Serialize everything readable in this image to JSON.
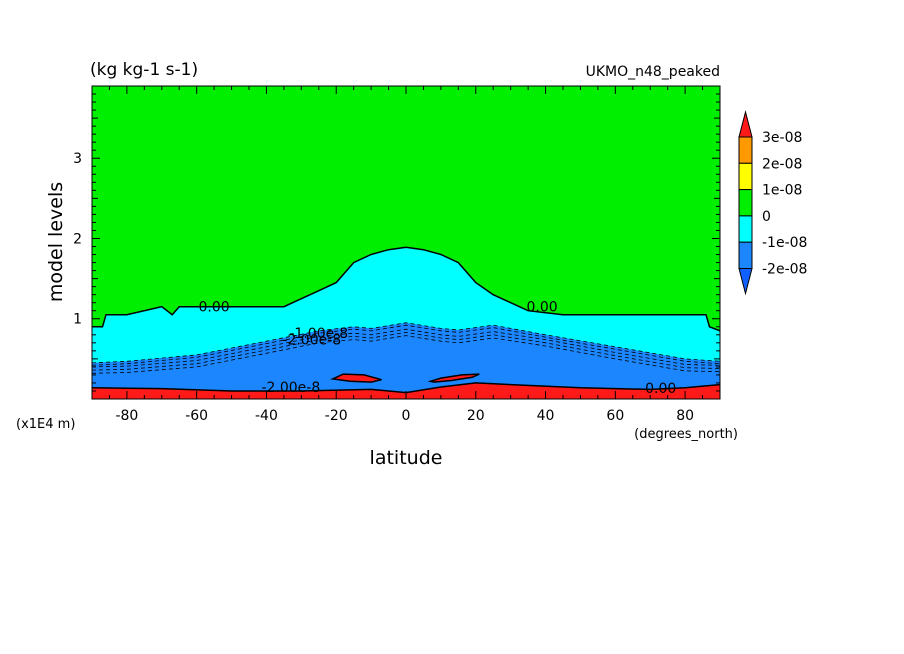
{
  "chart_data": {
    "type": "heatmap",
    "title": "(kg kg-1 s-1)",
    "subtitle": "UKMO_n48_peaked",
    "xlabel": "latitude",
    "xunit": "(degrees_north)",
    "ylabel": "model levels",
    "yunit": "(x1E4 m)",
    "xlim": [
      -90,
      90
    ],
    "ylim": [
      0,
      3.9
    ],
    "xticks": [
      -80,
      -60,
      -40,
      -20,
      0,
      20,
      40,
      60,
      80
    ],
    "yticks": [
      1,
      2,
      3
    ],
    "colorbar": {
      "levels": [
        "3e-08",
        "2e-08",
        "1e-08",
        "0",
        "-1e-08",
        "-2e-08"
      ],
      "colors": [
        "#ff1a1a",
        "#ff9900",
        "#ffff00",
        "#00ee00",
        "#00ffff",
        "#1c86ff",
        "#1060ff"
      ]
    },
    "contour_labels": [
      {
        "text": "0.00",
        "x": -55,
        "y": 1.15
      },
      {
        "text": "0.00",
        "x": 39,
        "y": 1.15
      },
      {
        "text": "-2.00e-8",
        "x": -27,
        "y": 0.74
      },
      {
        "text": "-1.00e-8",
        "x": -25,
        "y": 0.82
      },
      {
        "text": "0.00",
        "x": 73,
        "y": 0.14
      },
      {
        "text": "-2.00e-8",
        "x": -33,
        "y": 0.15
      }
    ],
    "zero_contour_top": {
      "lat": [
        -90,
        -87,
        -86,
        -80,
        -70,
        -67,
        -65,
        -55,
        -35,
        -30,
        -25,
        -20,
        -15,
        -10,
        -5,
        0,
        5,
        10,
        15,
        20,
        25,
        30,
        35,
        45,
        55,
        65,
        75,
        86,
        87,
        90
      ],
      "z": [
        0.9,
        0.9,
        1.05,
        1.05,
        1.15,
        1.05,
        1.15,
        1.15,
        1.15,
        1.25,
        1.35,
        1.45,
        1.7,
        1.8,
        1.86,
        1.89,
        1.86,
        1.8,
        1.7,
        1.45,
        1.3,
        1.2,
        1.1,
        1.05,
        1.05,
        1.05,
        1.05,
        1.05,
        0.9,
        0.85
      ]
    },
    "minus1_contour": {
      "lat": [
        -90,
        -80,
        -60,
        -40,
        -25,
        -15,
        -10,
        0,
        10,
        15,
        25,
        40,
        60,
        80,
        90
      ],
      "z": [
        0.45,
        0.47,
        0.55,
        0.72,
        0.85,
        0.9,
        0.88,
        0.95,
        0.88,
        0.86,
        0.92,
        0.8,
        0.65,
        0.5,
        0.47
      ]
    },
    "minus2_contour": {
      "lat": [
        -90,
        -80,
        -60,
        -40,
        -25,
        -15,
        -10,
        0,
        10,
        15,
        25,
        40,
        60,
        80,
        90
      ],
      "z": [
        0.4,
        0.41,
        0.48,
        0.65,
        0.78,
        0.82,
        0.8,
        0.87,
        0.8,
        0.78,
        0.84,
        0.74,
        0.58,
        0.43,
        0.42
      ]
    },
    "positive_bottom": {
      "lat": [
        -90,
        -70,
        -50,
        -30,
        -10,
        0,
        10,
        20,
        30,
        50,
        70,
        80,
        90
      ],
      "z": [
        0.14,
        0.13,
        0.1,
        0.1,
        0.12,
        0.08,
        0.15,
        0.2,
        0.18,
        0.14,
        0.12,
        0.14,
        0.18
      ]
    },
    "positive_islands": [
      {
        "lat": [
          -21,
          -18,
          -12,
          -7,
          -10,
          -16,
          -21
        ],
        "z": [
          0.25,
          0.31,
          0.3,
          0.24,
          0.21,
          0.22,
          0.25
        ]
      },
      {
        "lat": [
          7,
          10,
          16,
          21,
          19,
          13,
          8,
          7
        ],
        "z": [
          0.22,
          0.26,
          0.3,
          0.31,
          0.27,
          0.23,
          0.21,
          0.22
        ]
      }
    ]
  }
}
